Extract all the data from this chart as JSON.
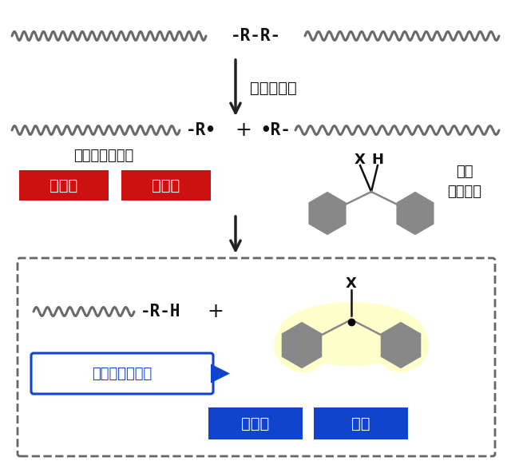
{
  "bg_color": "#ffffff",
  "polymer_color": "#6a6a6a",
  "arrow_color": "#222222",
  "red_color": "#cc1111",
  "blue_color": "#1144cc",
  "mol_color": "#888888",
  "mol_highlight": "#ffffcc",
  "text_color": "#111111",
  "arrow_label": "力学的刺激",
  "mekano_label": "メカノラジカル",
  "probe_label1": "分子",
  "probe_label2": "プローブ",
  "red_btn1": "超微量",
  "red_btn2": "不安定",
  "multi_label": "多角的評価可能",
  "blue_btn1": "蛍光性",
  "blue_btn2": "安定",
  "x_label": "X",
  "h_label": "H",
  "x_label2": "X",
  "fig_width": 6.4,
  "fig_height": 5.82
}
